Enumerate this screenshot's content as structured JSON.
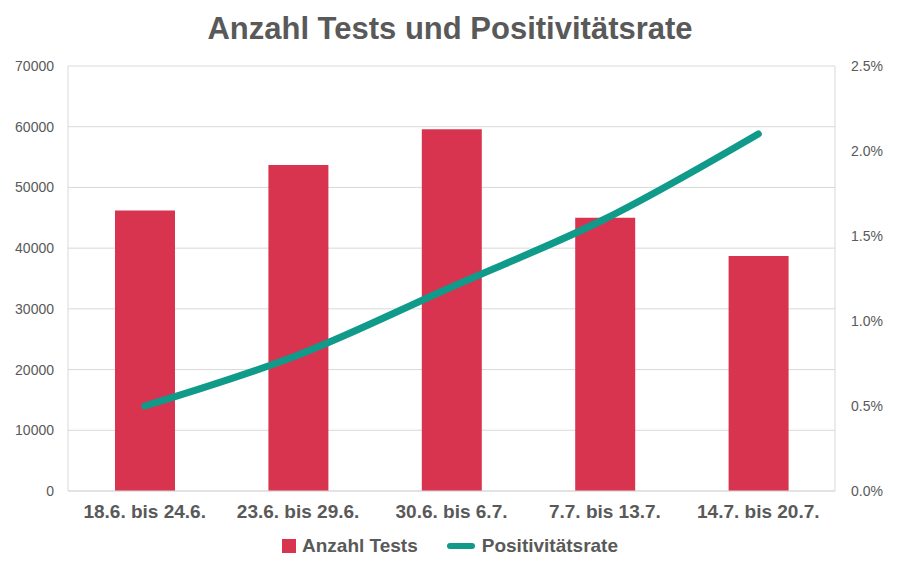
{
  "chart_data": {
    "type": "bar",
    "title": "Anzahl Tests und Positivitätsrate",
    "categories": [
      "18.6. bis 24.6.",
      "23.6. bis 29.6.",
      "30.6. bis 6.7.",
      "7.7. bis 13.7.",
      "14.7. bis 20.7."
    ],
    "series": [
      {
        "name": "Anzahl Tests",
        "type": "bar",
        "color": "#d9344f",
        "values": [
          46200,
          53700,
          59600,
          45000,
          38700
        ]
      },
      {
        "name": "Positivitätsrate",
        "type": "line",
        "color": "#0f9a8a",
        "axis": "y2",
        "values": [
          0.5,
          0.8,
          1.2,
          1.6,
          2.1
        ]
      }
    ],
    "ylim": [
      0,
      70000
    ],
    "yticks": [
      0,
      10000,
      20000,
      30000,
      40000,
      50000,
      60000,
      70000
    ],
    "y2lim": [
      0,
      2.5
    ],
    "y2ticks": [
      {
        "value": 0,
        "label": "0.0%"
      },
      {
        "value": 0.5,
        "label": "0.5%"
      },
      {
        "value": 1,
        "label": "1.0%"
      },
      {
        "value": 1.5,
        "label": "1.5%"
      },
      {
        "value": 2,
        "label": "2.0%"
      },
      {
        "value": 2.5,
        "label": "2.5%"
      }
    ],
    "grid": true,
    "legend": "bottom"
  }
}
